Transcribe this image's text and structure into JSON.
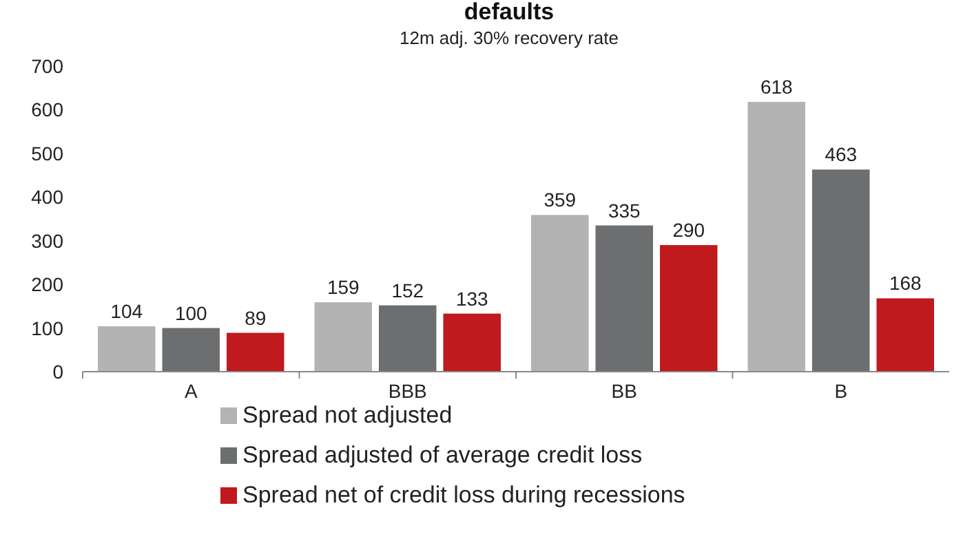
{
  "chart_data": {
    "type": "bar",
    "title": "defaults",
    "subtitle": "12m adj. 30% recovery rate",
    "categories": [
      "A",
      "BBB",
      "BB",
      "B"
    ],
    "series": [
      {
        "name": "Spread not adjusted",
        "color": "#b3b3b3",
        "values": [
          104,
          159,
          359,
          618
        ]
      },
      {
        "name": "Spread adjusted of average credit loss",
        "color": "#6d6e70",
        "values": [
          100,
          152,
          335,
          463
        ]
      },
      {
        "name": "Spread net of credit loss during recessions",
        "color": "#c0191e",
        "values": [
          89,
          133,
          290,
          168
        ]
      }
    ],
    "ylim": [
      0,
      700
    ],
    "yticks": [
      0,
      100,
      200,
      300,
      400,
      500,
      600,
      700
    ],
    "data_labels": true,
    "legend": "bottom",
    "grid": false
  }
}
